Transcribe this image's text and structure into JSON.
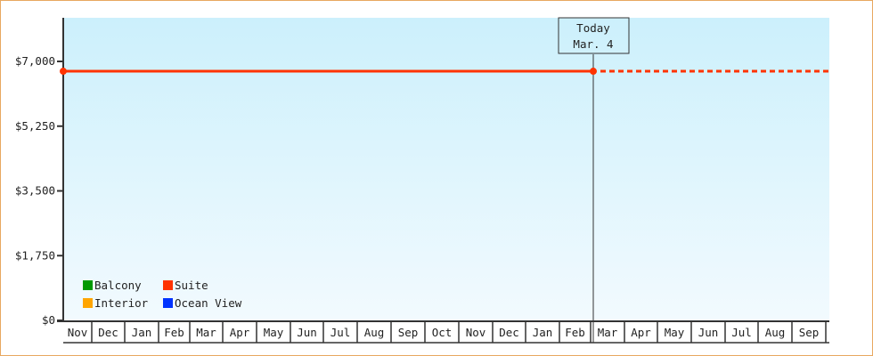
{
  "chart_data": {
    "type": "line",
    "title": "",
    "xlabel": "",
    "ylabel": "",
    "ylim": [
      0,
      8500
    ],
    "yticks": [
      0,
      1750,
      3500,
      5250,
      7000
    ],
    "ytick_labels": [
      "$0",
      "$1,750",
      "$3,500",
      "$5,250",
      "$7,000"
    ],
    "month_labels": [
      "Nov",
      "Dec",
      "Jan",
      "Feb",
      "Mar",
      "Apr",
      "May",
      "Jun",
      "Jul",
      "Aug",
      "Sep",
      "Oct",
      "Nov",
      "Dec",
      "Jan",
      "Feb",
      "Mar",
      "Apr",
      "May",
      "Jun",
      "Jul",
      "Aug",
      "Sep"
    ],
    "grid": false,
    "legend_placement": "bottom-left",
    "legend": [
      {
        "name": "Balcony",
        "color": "#009900"
      },
      {
        "name": "Suite",
        "color": "#ff3300"
      },
      {
        "name": "Interior",
        "color": "#ffa500"
      },
      {
        "name": "Ocean View",
        "color": "#0033ff"
      }
    ],
    "series": [
      {
        "name": "Suite",
        "color": "#ff3300",
        "points": [
          {
            "x": "Nov (start)",
            "y": 6735
          },
          {
            "x": "Mar. 4",
            "y": 6735
          }
        ],
        "projection": {
          "from": "Mar. 4",
          "to": "Sep (end)",
          "y": 6735,
          "style": "dashed"
        }
      }
    ],
    "today_marker": {
      "line1": "Today",
      "line2": "Mar. 4"
    }
  },
  "colors": {
    "bg_top": "#ccf0fc",
    "bg_bottom": "#f2fafe",
    "frame": "#e8a860",
    "axis": "#333333"
  }
}
